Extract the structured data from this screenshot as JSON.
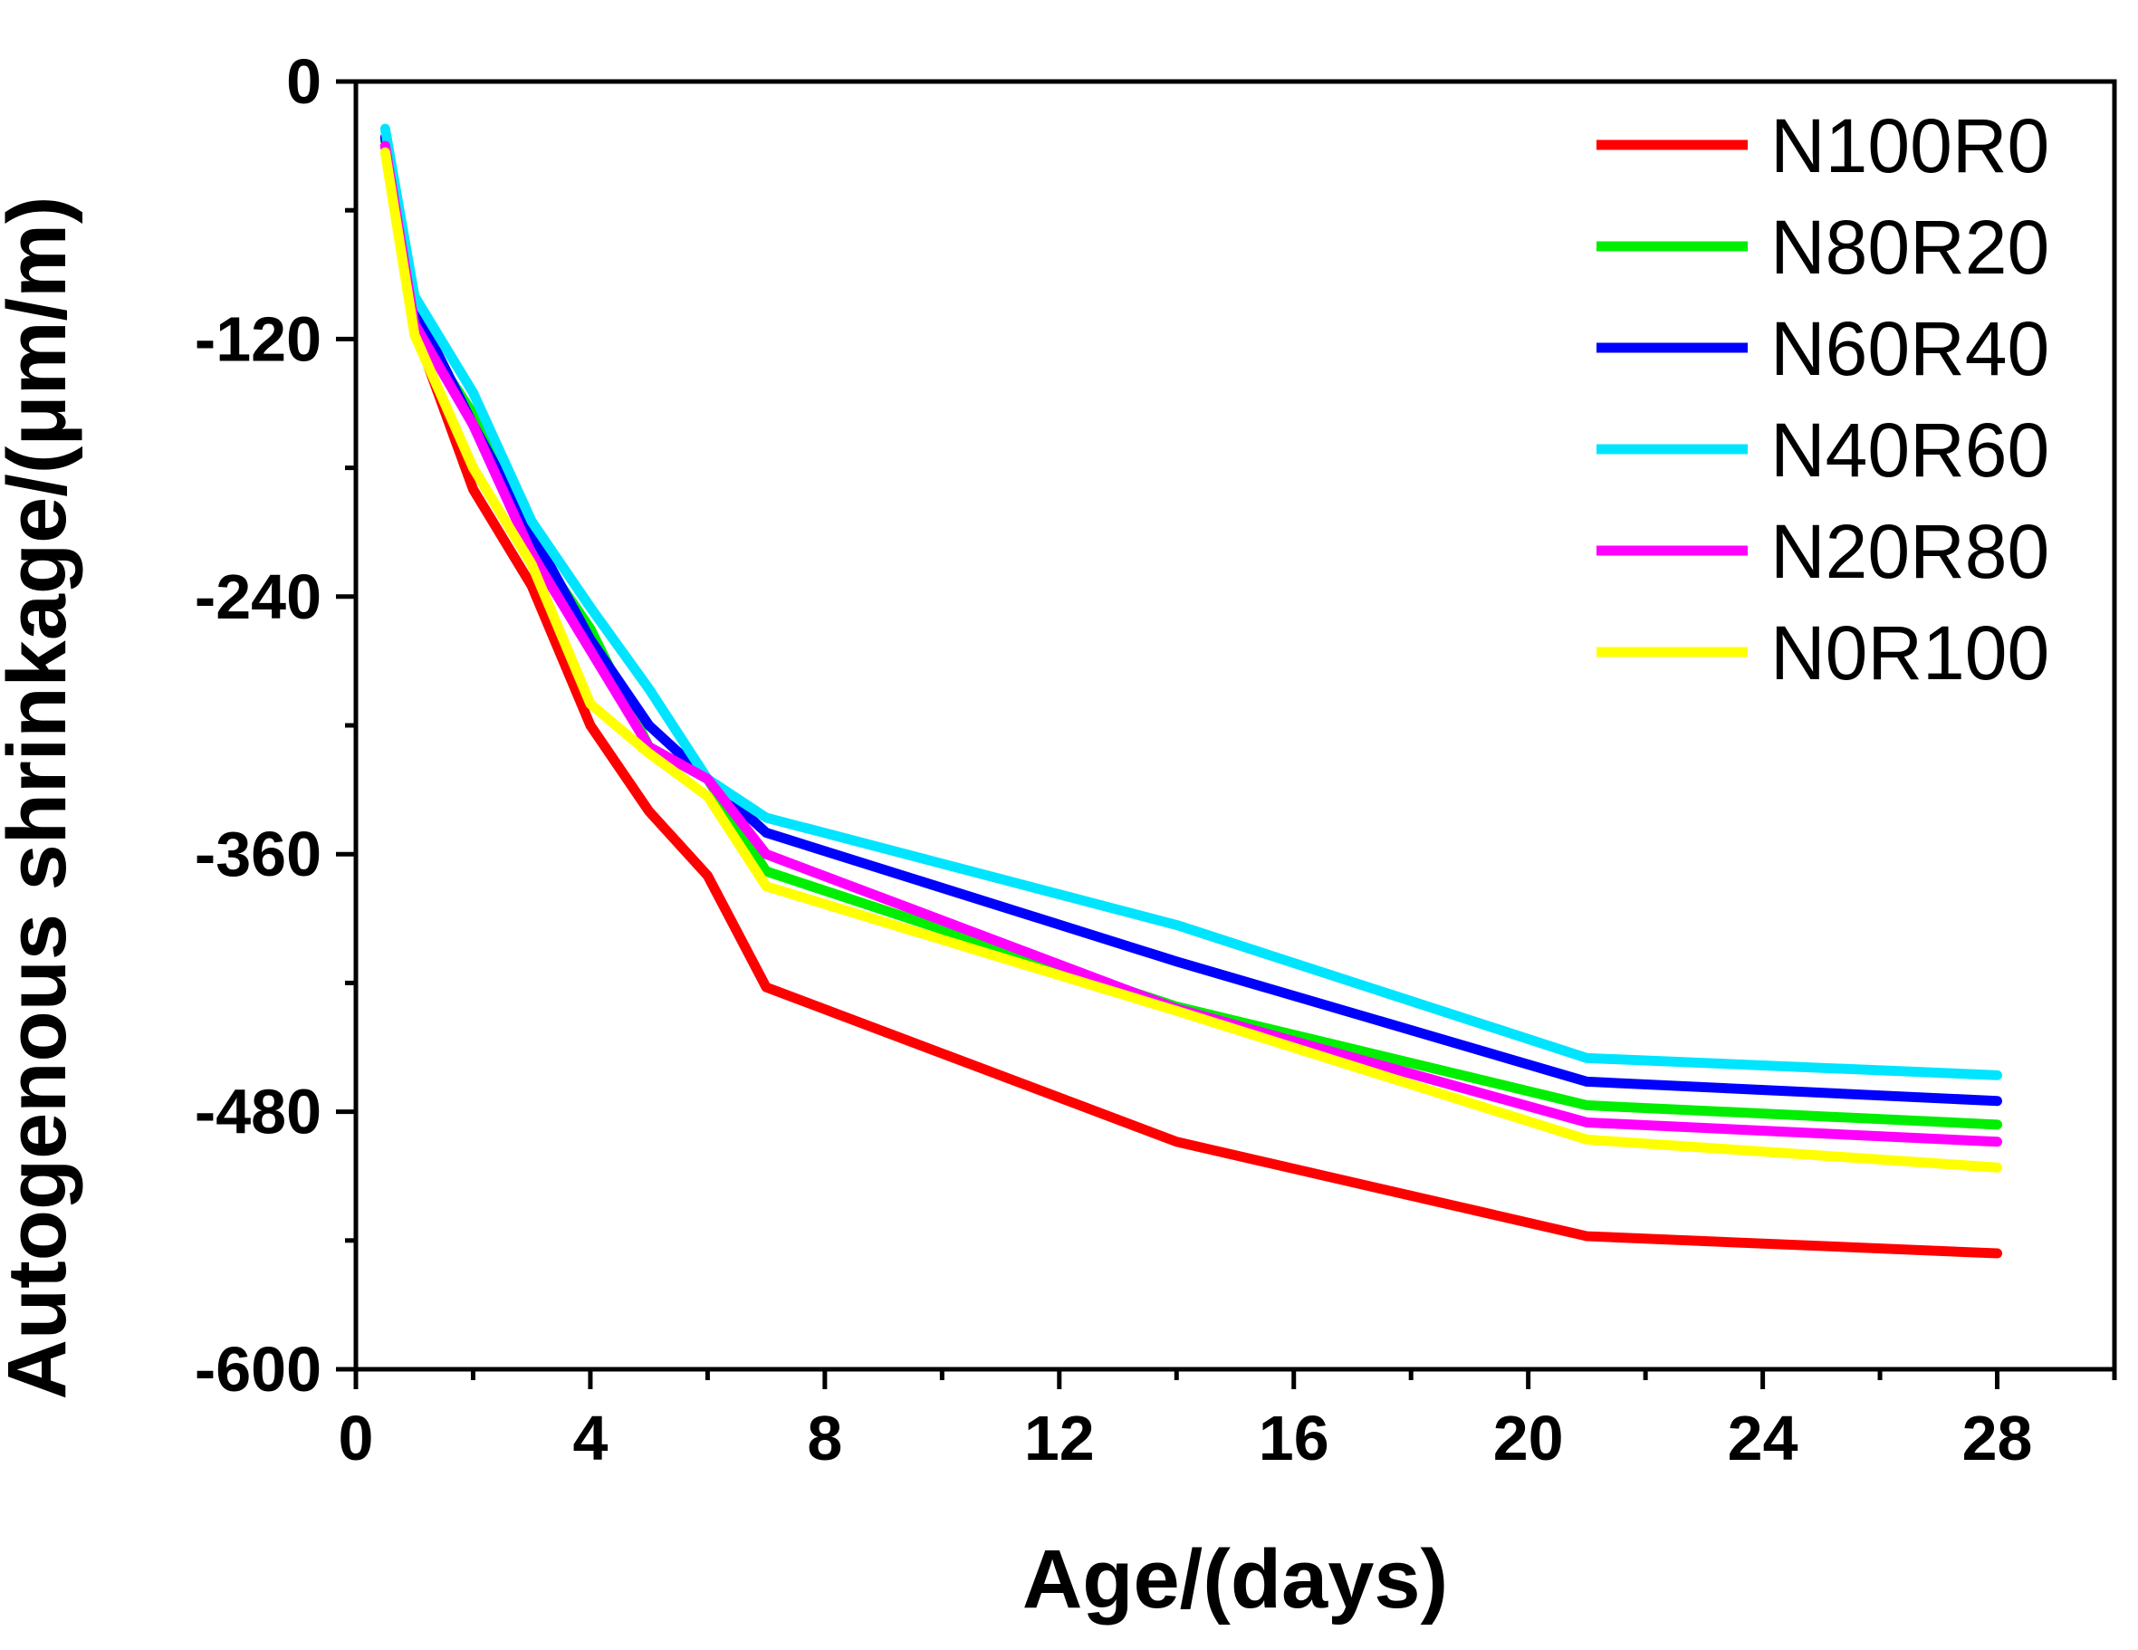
{
  "chart_data": {
    "type": "line",
    "xlabel": "Age/(days)",
    "ylabel": "Autogenous shrinkage/(μm/m)",
    "xlim": [
      0,
      30
    ],
    "ylim": [
      -600,
      0
    ],
    "xticks": [
      0,
      4,
      8,
      12,
      16,
      20,
      24,
      28
    ],
    "yticks": [
      0,
      -120,
      -240,
      -360,
      -480,
      -600
    ],
    "x": [
      0.5,
      1,
      2,
      3,
      4,
      5,
      6,
      7,
      14,
      21,
      28
    ],
    "legend_position": "top-right",
    "grid": false,
    "series": [
      {
        "name": "N100R0",
        "color": "#ff0000",
        "values": [
          -30,
          -115,
          -190,
          -235,
          -300,
          -340,
          -370,
          -422,
          -494,
          -538,
          -546
        ]
      },
      {
        "name": "N80R20",
        "color": "#00ee00",
        "values": [
          -27,
          -113,
          -155,
          -215,
          -255,
          -310,
          -325,
          -368,
          -431,
          -477,
          -486
        ]
      },
      {
        "name": "N60R40",
        "color": "#0000ff",
        "values": [
          -26,
          -105,
          -160,
          -210,
          -260,
          -300,
          -325,
          -350,
          -410,
          -466,
          -475
        ]
      },
      {
        "name": "N40R60",
        "color": "#00e5ff",
        "values": [
          -22,
          -100,
          -145,
          -205,
          -245,
          -283,
          -325,
          -343,
          -393,
          -455,
          -463
        ]
      },
      {
        "name": "N20R80",
        "color": "#ff00ff",
        "values": [
          -30,
          -113,
          -160,
          -220,
          -265,
          -310,
          -325,
          -360,
          -432,
          -485,
          -494
        ]
      },
      {
        "name": "N0R100",
        "color": "#ffff00",
        "values": [
          -33,
          -118,
          -180,
          -225,
          -290,
          -313,
          -333,
          -375,
          -433,
          -493,
          -506
        ]
      }
    ]
  }
}
